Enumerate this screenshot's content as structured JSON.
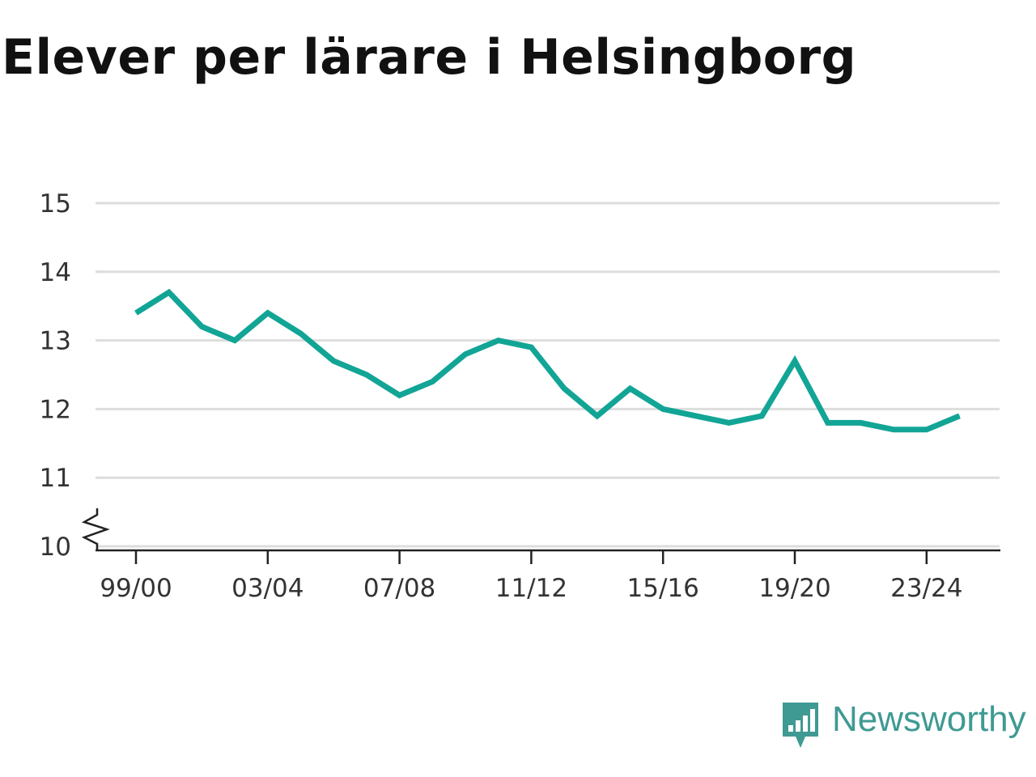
{
  "title": "Elever per lärare i Helsingborg",
  "brand": {
    "name": "Newsworthy",
    "icon": "bar-chart-speech-bubble-icon",
    "color": "#3f9a93"
  },
  "chart_data": {
    "type": "line",
    "x": [
      "99/00",
      "00/01",
      "01/02",
      "02/03",
      "03/04",
      "04/05",
      "05/06",
      "06/07",
      "07/08",
      "08/09",
      "09/10",
      "10/11",
      "11/12",
      "12/13",
      "13/14",
      "14/15",
      "15/16",
      "16/17",
      "17/18",
      "18/19",
      "19/20",
      "20/21",
      "21/22",
      "22/23",
      "23/24",
      "24/25"
    ],
    "series": [
      {
        "color": "#12a596",
        "values": [
          13.4,
          13.7,
          13.2,
          13.0,
          13.4,
          13.1,
          12.7,
          12.5,
          12.2,
          12.4,
          12.8,
          13.0,
          12.9,
          12.3,
          11.9,
          12.3,
          12.0,
          11.9,
          11.8,
          11.9,
          12.7,
          11.8,
          11.8,
          11.7,
          11.7,
          11.9
        ]
      }
    ],
    "yticks": [
      10,
      11,
      12,
      13,
      14,
      15
    ],
    "xtick_labels": [
      "99/00",
      "03/04",
      "07/08",
      "11/12",
      "15/16",
      "19/20",
      "23/24"
    ],
    "ylim": [
      10,
      15
    ],
    "axis_break": true,
    "grid": true,
    "grid_color": "#dddddd"
  }
}
